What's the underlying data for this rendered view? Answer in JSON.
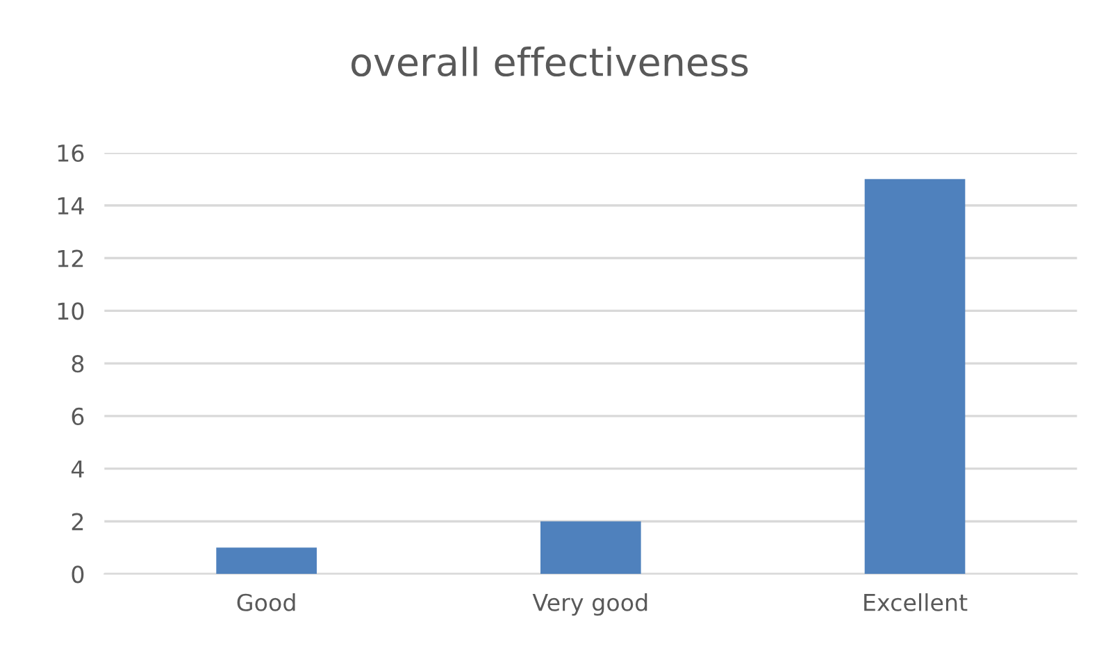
{
  "chart_data": {
    "type": "bar",
    "title": "overall effectiveness",
    "categories": [
      "Good",
      "Very good",
      "Excellent"
    ],
    "values": [
      1,
      2,
      15
    ],
    "color": "#4f81bd",
    "ylim": [
      0,
      16
    ],
    "yticks": [
      0,
      2,
      4,
      6,
      8,
      10,
      12,
      14,
      16
    ],
    "grid": "y"
  }
}
